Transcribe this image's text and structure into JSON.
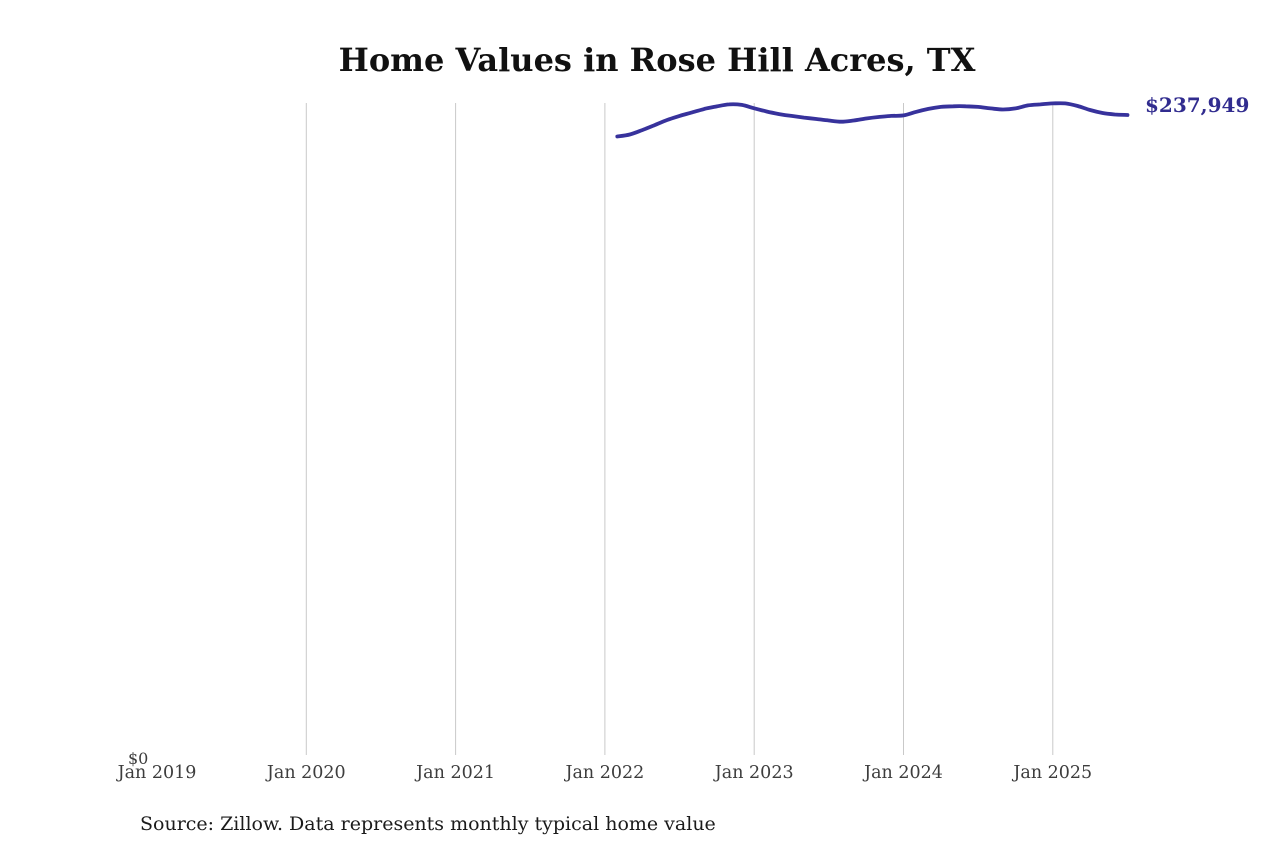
{
  "title": "Home Values in Rose Hill Acres, TX",
  "source_note": "Source: Zillow. Data represents monthly typical home value",
  "colors": {
    "line": "#37329c",
    "latest_label": "#312c8f",
    "gridline": "#c9c9c9",
    "axis_text": "#3d3d3d",
    "title_text": "#111111",
    "background": "#ffffff"
  },
  "chart_data": {
    "type": "line",
    "title": "Home Values in Rose Hill Acres, TX",
    "grid": "vertical-only",
    "legend_position": "none",
    "ylim": [
      0,
      243500
    ],
    "y_zero_label": "$0",
    "last_value": 237949,
    "last_value_label": "$237,949",
    "x_ticks": [
      {
        "label": "Jan 2019",
        "date": "2019-01",
        "gridline": false
      },
      {
        "label": "Jan 2020",
        "date": "2020-01",
        "gridline": true
      },
      {
        "label": "Jan 2021",
        "date": "2021-01",
        "gridline": true
      },
      {
        "label": "Jan 2022",
        "date": "2022-01",
        "gridline": true
      },
      {
        "label": "Jan 2023",
        "date": "2023-01",
        "gridline": true
      },
      {
        "label": "Jan 2024",
        "date": "2024-01",
        "gridline": true
      },
      {
        "label": "Jan 2025",
        "date": "2025-01",
        "gridline": true
      }
    ],
    "series": [
      {
        "name": "Monthly typical home value",
        "color": "#37329c",
        "points": [
          {
            "date": "2022-02",
            "value": 229950
          },
          {
            "date": "2022-03",
            "value": 230700
          },
          {
            "date": "2022-04",
            "value": 232350
          },
          {
            "date": "2022-05",
            "value": 234200
          },
          {
            "date": "2022-06",
            "value": 236100
          },
          {
            "date": "2022-07",
            "value": 237600
          },
          {
            "date": "2022-08",
            "value": 238900
          },
          {
            "date": "2022-09",
            "value": 240200
          },
          {
            "date": "2022-10",
            "value": 241150
          },
          {
            "date": "2022-11",
            "value": 241900
          },
          {
            "date": "2022-12",
            "value": 241700
          },
          {
            "date": "2023-01",
            "value": 240450
          },
          {
            "date": "2023-02",
            "value": 239250
          },
          {
            "date": "2023-03",
            "value": 238300
          },
          {
            "date": "2023-04",
            "value": 237600
          },
          {
            "date": "2023-05",
            "value": 237000
          },
          {
            "date": "2023-06",
            "value": 236450
          },
          {
            "date": "2023-07",
            "value": 235900
          },
          {
            "date": "2023-08",
            "value": 235450
          },
          {
            "date": "2023-09",
            "value": 235900
          },
          {
            "date": "2023-10",
            "value": 236650
          },
          {
            "date": "2023-11",
            "value": 237200
          },
          {
            "date": "2023-12",
            "value": 237600
          },
          {
            "date": "2024-01",
            "value": 237800
          },
          {
            "date": "2024-02",
            "value": 239100
          },
          {
            "date": "2024-03",
            "value": 240200
          },
          {
            "date": "2024-04",
            "value": 240950
          },
          {
            "date": "2024-05",
            "value": 241200
          },
          {
            "date": "2024-06",
            "value": 241200
          },
          {
            "date": "2024-07",
            "value": 240950
          },
          {
            "date": "2024-08",
            "value": 240400
          },
          {
            "date": "2024-09",
            "value": 240000
          },
          {
            "date": "2024-10",
            "value": 240400
          },
          {
            "date": "2024-11",
            "value": 241500
          },
          {
            "date": "2024-12",
            "value": 241900
          },
          {
            "date": "2025-01",
            "value": 242250
          },
          {
            "date": "2025-02",
            "value": 242250
          },
          {
            "date": "2025-03",
            "value": 241300
          },
          {
            "date": "2025-04",
            "value": 239800
          },
          {
            "date": "2025-05",
            "value": 238700
          },
          {
            "date": "2025-06",
            "value": 238150
          },
          {
            "date": "2025-07",
            "value": 237949
          }
        ]
      }
    ]
  }
}
